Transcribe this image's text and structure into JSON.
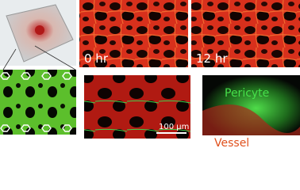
{
  "labels": {
    "time_start": "0 hr",
    "time_end": "12 hr",
    "scale_bar": "100 μm",
    "pericyte": "Pericyte",
    "vessel": "Vessel"
  }
}
